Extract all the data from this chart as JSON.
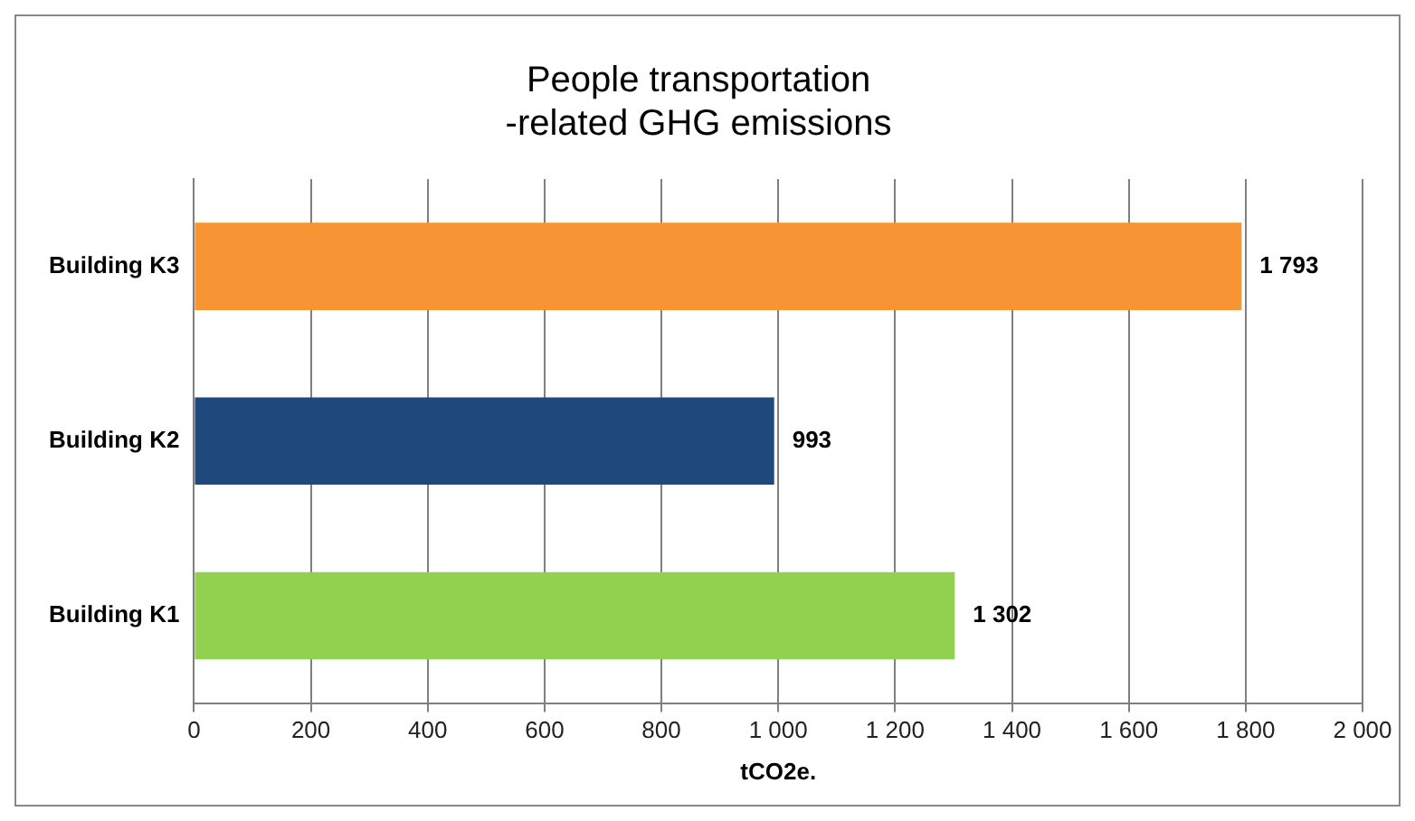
{
  "chart_data": {
    "type": "bar",
    "orientation": "horizontal",
    "title": "People transportation\n-related GHG emissions",
    "xlabel": "tCO2e.",
    "categories": [
      "Building K3",
      "Building K2",
      "Building K1"
    ],
    "values": [
      1793,
      993,
      1302
    ],
    "colors": [
      "#f79433",
      "#1f497d",
      "#92d050"
    ],
    "value_labels": [
      "1 793",
      "993",
      "1 302"
    ],
    "xlim": [
      0,
      2000
    ],
    "xticks": [
      0,
      200,
      400,
      600,
      800,
      {
        "value": 1000,
        "label": "1 000"
      },
      {
        "value": 1200,
        "label": "1 200"
      },
      {
        "value": 1400,
        "label": "1 400"
      },
      {
        "value": 1600,
        "label": "1 600"
      },
      {
        "value": 1800,
        "label": "1 800"
      },
      {
        "value": 2000,
        "label": "2 000"
      }
    ],
    "grid": "x"
  }
}
